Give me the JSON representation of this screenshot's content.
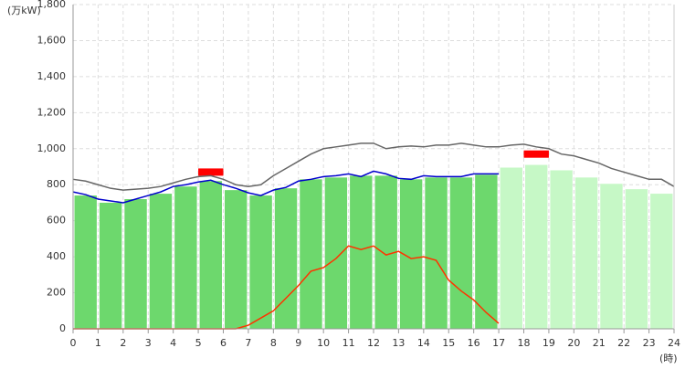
{
  "chart_data": {
    "type": "combo",
    "y_unit_label": "(万kW)",
    "x_unit_label": "(時)",
    "xlim": [
      0,
      24
    ],
    "ylim": [
      0,
      1800
    ],
    "xticks": [
      0,
      1,
      2,
      3,
      4,
      5,
      6,
      7,
      8,
      9,
      10,
      11,
      12,
      13,
      14,
      15,
      16,
      17,
      18,
      19,
      20,
      21,
      22,
      23,
      24
    ],
    "yticks": [
      0,
      200,
      400,
      600,
      800,
      {
        "value": 1000,
        "label": "1,000"
      },
      {
        "value": 1200,
        "label": "1,200"
      },
      {
        "value": 1400,
        "label": "1,400"
      },
      {
        "value": 1600,
        "label": "1,600"
      },
      {
        "value": 1800,
        "label": "1,800"
      }
    ],
    "grid": true,
    "series": [
      {
        "type": "bar",
        "color": "#6dd86d",
        "x": [
          0,
          1,
          2,
          3,
          4,
          5,
          6,
          7,
          8,
          9,
          10,
          11,
          12,
          13,
          14,
          15,
          16
        ],
        "values": [
          740,
          700,
          720,
          750,
          790,
          820,
          770,
          740,
          780,
          830,
          840,
          850,
          850,
          830,
          840,
          840,
          855
        ]
      },
      {
        "type": "bar",
        "color": "#c6f8c6",
        "x": [
          17,
          18,
          19,
          20,
          21,
          22,
          23
        ],
        "values": [
          895,
          910,
          880,
          840,
          805,
          775,
          750
        ]
      },
      {
        "type": "marker",
        "color": "#ff0000",
        "x": [
          5,
          18
        ],
        "values": [
          870,
          970
        ]
      },
      {
        "type": "line",
        "color": "#666666",
        "x": [
          0,
          0.5,
          1,
          1.5,
          2,
          2.5,
          3,
          3.5,
          4,
          4.5,
          5,
          5.5,
          6,
          6.5,
          7,
          7.5,
          8,
          8.5,
          9,
          9.5,
          10,
          10.5,
          11,
          11.5,
          12,
          12.5,
          13,
          13.5,
          14,
          14.5,
          15,
          15.5,
          16,
          16.5,
          17,
          17.5,
          18,
          18.5,
          19,
          19.5,
          20,
          20.5,
          21,
          21.5,
          22,
          22.5,
          23,
          23.5,
          24
        ],
        "values": [
          830,
          820,
          800,
          780,
          770,
          775,
          780,
          790,
          810,
          830,
          845,
          850,
          830,
          800,
          790,
          800,
          850,
          890,
          930,
          970,
          1000,
          1010,
          1020,
          1030,
          1030,
          1000,
          1010,
          1015,
          1010,
          1020,
          1020,
          1030,
          1020,
          1010,
          1010,
          1020,
          1025,
          1010,
          1000,
          970,
          960,
          940,
          920,
          890,
          870,
          850,
          830,
          830,
          790
        ]
      },
      {
        "type": "line",
        "color": "#0000cc",
        "x": [
          0,
          0.5,
          1,
          1.5,
          2,
          2.5,
          3,
          3.5,
          4,
          4.5,
          5,
          5.5,
          6,
          6.5,
          7,
          7.5,
          8,
          8.5,
          9,
          9.5,
          10,
          10.5,
          11,
          11.5,
          12,
          12.5,
          13,
          13.5,
          14,
          14.5,
          15,
          15.5,
          16,
          16.5,
          17
        ],
        "values": [
          760,
          745,
          720,
          710,
          700,
          720,
          740,
          760,
          790,
          800,
          815,
          825,
          800,
          780,
          755,
          740,
          770,
          785,
          820,
          830,
          845,
          850,
          860,
          845,
          875,
          860,
          835,
          830,
          850,
          845,
          845,
          845,
          860,
          860,
          860
        ]
      },
      {
        "type": "line",
        "color": "#ff3300",
        "x": [
          0,
          0.5,
          1,
          1.5,
          2,
          2.5,
          3,
          3.5,
          4,
          4.5,
          5,
          5.5,
          6,
          6.5,
          7,
          7.5,
          8,
          8.5,
          9,
          9.5,
          10,
          10.5,
          11,
          11.5,
          12,
          12.5,
          13,
          13.5,
          14,
          14.5,
          15,
          15.5,
          16,
          16.5,
          17
        ],
        "values": [
          0,
          0,
          0,
          0,
          0,
          0,
          0,
          0,
          0,
          0,
          0,
          0,
          0,
          0,
          20,
          60,
          100,
          170,
          240,
          320,
          340,
          390,
          460,
          440,
          460,
          410,
          430,
          390,
          400,
          380,
          270,
          210,
          160,
          90,
          30
        ]
      }
    ]
  }
}
